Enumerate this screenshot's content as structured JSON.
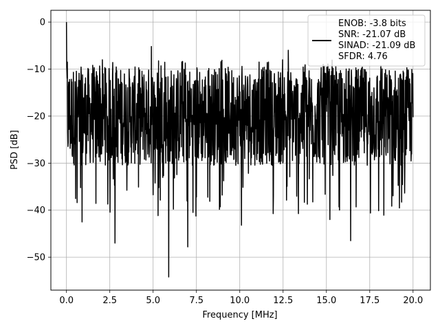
{
  "chart_data": {
    "type": "line",
    "title": "",
    "xlabel": "Frequency [MHz]",
    "ylabel": "PSD [dB]",
    "xlim": [
      -0.9,
      21.0
    ],
    "ylim": [
      -57.0,
      2.5
    ],
    "x_ticks": [
      0.0,
      2.5,
      5.0,
      7.5,
      10.0,
      12.5,
      15.0,
      17.5,
      20.0
    ],
    "x_tick_labels": [
      "0.0",
      "2.5",
      "5.0",
      "7.5",
      "10.0",
      "12.5",
      "15.0",
      "17.5",
      "20.0"
    ],
    "y_ticks": [
      0,
      -10,
      -20,
      -30,
      -40,
      -50
    ],
    "y_tick_labels": [
      "0",
      "−10",
      "−20",
      "−30",
      "−40",
      "−50"
    ],
    "grid": true,
    "legend_position": "top-right",
    "legend_entries": [
      "ENOB: -3.8 bits",
      "SNR: -21.07 dB",
      "SINAD: -21.09 dB",
      "SFDR: 4.76"
    ],
    "series_color": "#000000",
    "x_range": [
      0.0,
      20.0
    ],
    "noise_floor_mean_db": -20,
    "noise_band_db": [
      -30,
      -10
    ],
    "peaks": [
      {
        "x": 0.0,
        "y": 0.0
      },
      {
        "x": 0.05,
        "y": -8.5
      },
      {
        "x": 4.9,
        "y": -5.2
      },
      {
        "x": 12.8,
        "y": -6.0
      }
    ],
    "troughs": [
      {
        "x": 5.9,
        "y": -54.2
      },
      {
        "x": 7.0,
        "y": -47.8
      },
      {
        "x": 2.8,
        "y": -47.0
      },
      {
        "x": 16.4,
        "y": -46.5
      },
      {
        "x": 0.9,
        "y": -42.5
      },
      {
        "x": 10.1,
        "y": -43.2
      },
      {
        "x": 15.2,
        "y": -42.0
      }
    ]
  }
}
